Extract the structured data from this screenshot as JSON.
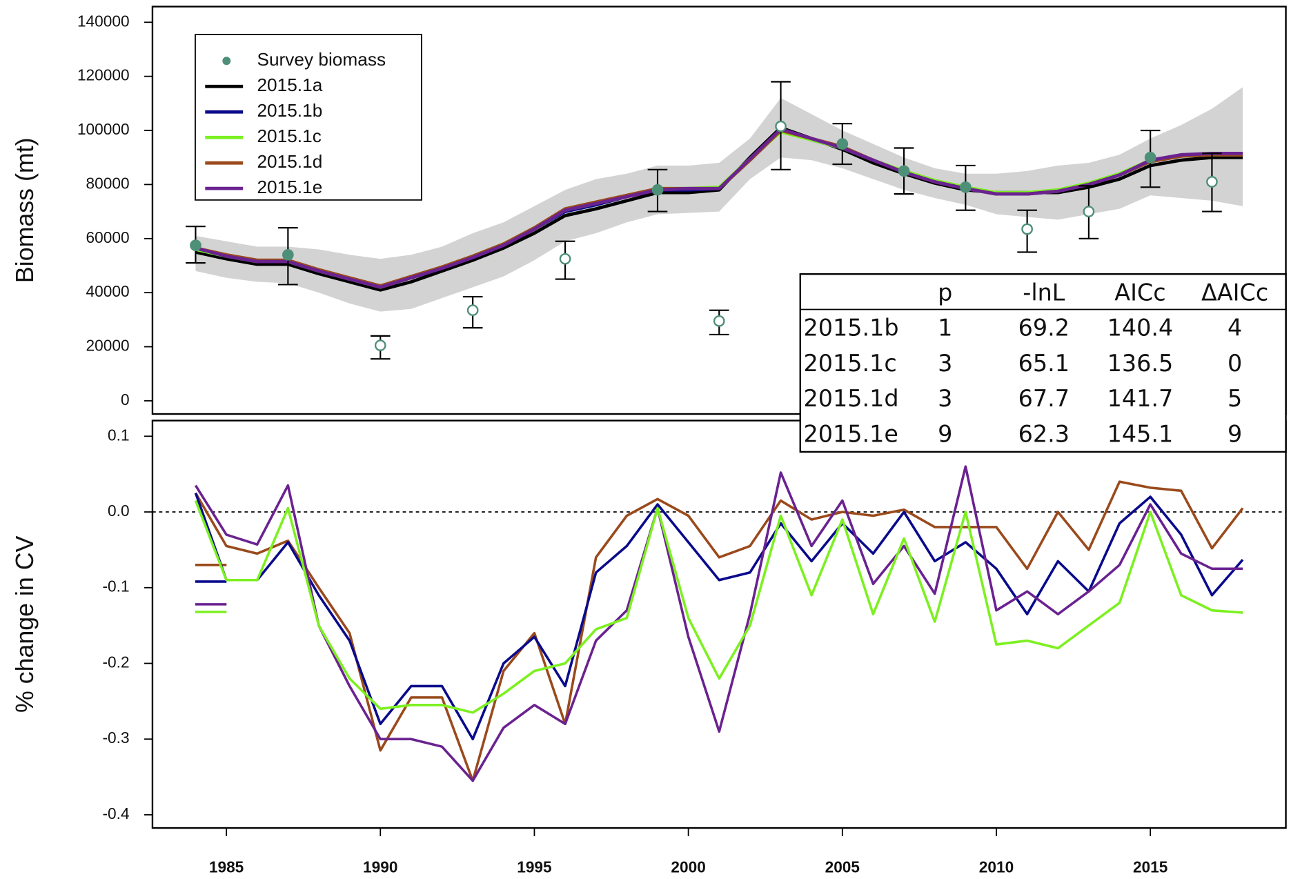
{
  "chart_data": [
    {
      "type": "line",
      "ylabel": "Biomass (mt)",
      "xlim": [
        1982.6,
        2019.4
      ],
      "ylim": [
        -4870,
        145800
      ],
      "yticks": [
        0,
        20000,
        40000,
        60000,
        80000,
        100000,
        120000,
        140000
      ],
      "legend": "top-left",
      "x": [
        1984,
        1985,
        1986,
        1987,
        1988,
        1989,
        1990,
        1991,
        1992,
        1993,
        1994,
        1995,
        1996,
        1997,
        1998,
        1999,
        2000,
        2001,
        2002,
        2003,
        2004,
        2005,
        2006,
        2007,
        2008,
        2009,
        2010,
        2011,
        2012,
        2013,
        2014,
        2015,
        2016,
        2017,
        2018
      ],
      "band": {
        "color": "#d3d3d3",
        "upper": [
          61000,
          59000,
          57000,
          57000,
          56000,
          54000,
          52500,
          54000,
          57000,
          62000,
          66000,
          72000,
          78000,
          82000,
          84000,
          87000,
          87000,
          88000,
          97000,
          112000,
          106000,
          100000,
          95000,
          90000,
          86000,
          84000,
          84000,
          85000,
          87000,
          88000,
          91000,
          97000,
          102000,
          108000,
          116000
        ],
        "lower": [
          48000,
          45500,
          44000,
          43500,
          40000,
          36000,
          33000,
          34000,
          38000,
          42000,
          46000,
          52000,
          59000,
          62000,
          66000,
          69000,
          69500,
          70000,
          82000,
          90000,
          89000,
          86000,
          82000,
          78000,
          75000,
          72500,
          69000,
          68000,
          67000,
          69000,
          71000,
          76000,
          75000,
          74000,
          72000
        ]
      },
      "series": [
        {
          "name": "2015.1a",
          "color": "#000000",
          "values": [
            55000,
            52500,
            50500,
            50500,
            47000,
            44000,
            41000,
            44000,
            48000,
            52000,
            56500,
            62000,
            68500,
            71000,
            74000,
            77000,
            77000,
            78000,
            90000,
            101000,
            97000,
            93000,
            88000,
            84000,
            80500,
            78000,
            77000,
            77000,
            77000,
            79000,
            82000,
            87000,
            89000,
            90000,
            90000
          ]
        },
        {
          "name": "2015.1b",
          "color": "#0a0a8c",
          "values": [
            56000,
            53500,
            51500,
            51500,
            48000,
            45000,
            42500,
            45500,
            49000,
            53000,
            57500,
            63500,
            70000,
            72500,
            75500,
            78000,
            78000,
            78500,
            89000,
            100000,
            96500,
            93500,
            89000,
            84500,
            81000,
            78500,
            76500,
            76500,
            77500,
            80000,
            83500,
            88500,
            90500,
            91000,
            91000
          ]
        },
        {
          "name": "2015.1c",
          "color": "#7cf020",
          "values": [
            56000,
            53500,
            51500,
            51500,
            48000,
            45000,
            42000,
            45500,
            49500,
            53500,
            58000,
            63500,
            70500,
            73000,
            75500,
            78500,
            78500,
            79000,
            89500,
            99500,
            96500,
            93500,
            89000,
            85000,
            81500,
            79000,
            77000,
            77000,
            78000,
            80500,
            84000,
            89000,
            90500,
            91000,
            91000
          ]
        },
        {
          "name": "2015.1d",
          "color": "#9a4a1c",
          "values": [
            56500,
            54000,
            52000,
            52000,
            48500,
            45500,
            42500,
            46000,
            49500,
            53500,
            58000,
            64000,
            71000,
            73500,
            76000,
            78500,
            78500,
            78500,
            89000,
            100000,
            97000,
            94000,
            89000,
            84500,
            81000,
            78500,
            76500,
            76500,
            77500,
            80000,
            83500,
            88500,
            90500,
            91000,
            91000
          ]
        },
        {
          "name": "2015.1e",
          "color": "#6a2290",
          "values": [
            56500,
            53500,
            51500,
            51500,
            48000,
            45000,
            42000,
            45500,
            49000,
            53000,
            57500,
            63500,
            70500,
            73000,
            75500,
            78000,
            78500,
            78500,
            89500,
            100500,
            97000,
            93500,
            89000,
            84500,
            81000,
            78500,
            76500,
            76500,
            77500,
            80000,
            83500,
            89000,
            91000,
            91500,
            91500
          ]
        }
      ],
      "survey": {
        "name": "Survey biomass",
        "color": "#4e8f78",
        "x": [
          1984,
          1987,
          1990,
          1993,
          1996,
          1999,
          2001,
          2003,
          2005,
          2007,
          2009,
          2011,
          2013,
          2015,
          2017
        ],
        "values": [
          57500,
          54000,
          20500,
          33500,
          52500,
          78000,
          29500,
          101500,
          95000,
          85000,
          79000,
          63500,
          70000,
          90000,
          81000
        ],
        "lower": [
          51000,
          43000,
          15500,
          27000,
          45000,
          70000,
          24500,
          85500,
          87500,
          76500,
          70500,
          55000,
          60000,
          79000,
          70000
        ],
        "upper": [
          64500,
          64000,
          24000,
          38500,
          59000,
          85500,
          33500,
          118000,
          102500,
          93500,
          87000,
          70500,
          79500,
          100000,
          91500
        ],
        "marker_fill": [
          "#4e8f78",
          "#4e8f78",
          "#ffffff",
          "#ffffff",
          "#ffffff",
          "#4e8f78",
          "#ffffff",
          "#ffffff",
          "#4e8f78",
          "#4e8f78",
          "#4e8f78",
          "#ffffff",
          "#ffffff",
          "#4e8f78",
          "#ffffff"
        ]
      }
    },
    {
      "type": "line",
      "ylabel": "% change in CV",
      "xlim": [
        1982.6,
        2019.4
      ],
      "ylim": [
        -0.4174,
        0.1207
      ],
      "yticks": [
        -0.4,
        -0.3,
        -0.2,
        -0.1,
        {
          "value": 0,
          "label": "0.0"
        },
        0.1
      ],
      "xticks": [
        1985,
        1990,
        1995,
        2000,
        2005,
        2010,
        2015
      ],
      "ref_line": 0,
      "x": [
        1984,
        1985,
        1986,
        1987,
        1988,
        1989,
        1990,
        1991,
        1992,
        1993,
        1994,
        1995,
        1996,
        1997,
        1998,
        1999,
        2000,
        2001,
        2002,
        2003,
        2004,
        2005,
        2006,
        2007,
        2008,
        2009,
        2010,
        2011,
        2012,
        2013,
        2014,
        2015,
        2016,
        2017,
        2018
      ],
      "series": [
        {
          "color": "#9a4a1c",
          "mean": -0.07,
          "values": [
            0.025,
            -0.045,
            -0.055,
            -0.038,
            -0.1,
            -0.16,
            -0.315,
            -0.245,
            -0.245,
            -0.355,
            -0.21,
            -0.16,
            -0.28,
            -0.06,
            -0.005,
            0.017,
            -0.005,
            -0.06,
            -0.045,
            0.015,
            -0.01,
            0,
            -0.005,
            0.003,
            -0.02,
            -0.02,
            -0.02,
            -0.075,
            0,
            -0.05,
            0.04,
            0.032,
            0.028,
            -0.048,
            0.005
          ]
        },
        {
          "color": "#0a0a8c",
          "mean": -0.092,
          "values": [
            0.025,
            -0.09,
            -0.09,
            -0.04,
            -0.11,
            -0.17,
            -0.28,
            -0.23,
            -0.23,
            -0.3,
            -0.2,
            -0.165,
            -0.23,
            -0.08,
            -0.045,
            0.01,
            -0.04,
            -0.09,
            -0.08,
            -0.015,
            -0.065,
            -0.015,
            -0.055,
            0,
            -0.065,
            -0.04,
            -0.075,
            -0.135,
            -0.065,
            -0.105,
            -0.015,
            0.02,
            -0.03,
            -0.11,
            -0.063
          ]
        },
        {
          "color": "#6a2290",
          "mean": -0.122,
          "values": [
            0.035,
            -0.03,
            -0.043,
            0.035,
            -0.15,
            -0.23,
            -0.3,
            -0.3,
            -0.31,
            -0.355,
            -0.285,
            -0.255,
            -0.28,
            -0.17,
            -0.13,
            0.005,
            -0.165,
            -0.29,
            -0.135,
            0.052,
            -0.045,
            0.015,
            -0.095,
            -0.045,
            -0.108,
            0.06,
            -0.13,
            -0.105,
            -0.135,
            -0.105,
            -0.07,
            0.01,
            -0.055,
            -0.075,
            -0.075
          ]
        },
        {
          "color": "#7cf020",
          "mean": -0.132,
          "values": [
            0.015,
            -0.09,
            -0.09,
            0.005,
            -0.15,
            -0.22,
            -0.26,
            -0.255,
            -0.255,
            -0.265,
            -0.24,
            -0.21,
            -0.2,
            -0.155,
            -0.14,
            0.005,
            -0.14,
            -0.22,
            -0.15,
            -0.005,
            -0.11,
            -0.01,
            -0.135,
            -0.035,
            -0.145,
            0,
            -0.175,
            -0.17,
            -0.18,
            -0.15,
            -0.12,
            0,
            -0.11,
            -0.13,
            -0.133
          ]
        }
      ]
    }
  ],
  "table": {
    "columns": [
      "p",
      "-lnL",
      "AICc",
      "ΔAICc"
    ],
    "rows": [
      [
        "2015.1b",
        1,
        69.2,
        140.4,
        4
      ],
      [
        "2015.1c",
        3,
        65.1,
        136.5,
        0
      ],
      [
        "2015.1d",
        3,
        67.7,
        141.7,
        5
      ],
      [
        "2015.1e",
        9,
        62.3,
        145.1,
        9
      ]
    ]
  }
}
